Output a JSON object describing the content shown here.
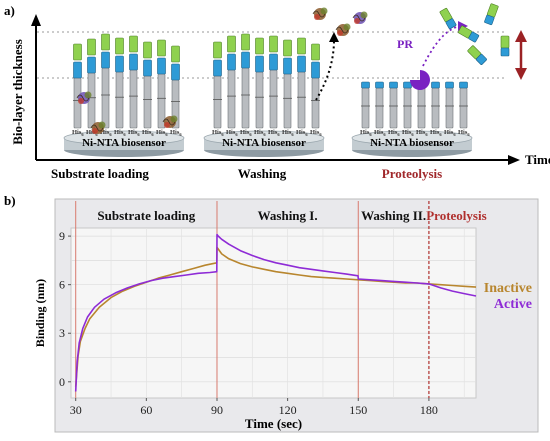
{
  "panel_a": {
    "label": "a)",
    "y_axis_label": "Bio-layer thickness",
    "x_axis_label": "Time",
    "stages": [
      {
        "caption": "Substrate loading",
        "base_label": "Ni-NTA biosensor"
      },
      {
        "caption": "Washing",
        "base_label": "Ni-NTA biosensor"
      },
      {
        "caption": "Proteolysis",
        "base_label": "Ni-NTA biosensor"
      }
    ],
    "his_tag": "His",
    "his_sub": "6",
    "pr_label": "PR",
    "colors": {
      "domain_green": "#8fd14f",
      "domain_blue": "#2e9bd6",
      "domain_grey": "#b9bcc0",
      "substrate_brown": "#8b5a2b",
      "enzyme_purple": "#7a22c2",
      "proteolysis_caption": "#a0282b",
      "arrow_red": "#9b2225"
    }
  },
  "panel_b": {
    "label": "b)",
    "phases": [
      "Substrate loading",
      "Washing I.",
      "Washing II.",
      "Proteolysis"
    ],
    "colors": {
      "inactive": "#b8862e",
      "active": "#8e2bd6",
      "proteolysis_label": "#b0302e",
      "phase_line": "#d87a6e"
    }
  },
  "chart_data": {
    "type": "line",
    "xlabel": "Time (sec)",
    "ylabel": "Binding (nm)",
    "xlim": [
      28,
      200
    ],
    "ylim": [
      -1,
      9.5
    ],
    "xticks": [
      30,
      60,
      90,
      120,
      150,
      180
    ],
    "yticks": [
      0,
      3,
      6,
      9
    ],
    "phase_boundaries": [
      30,
      90,
      150,
      180
    ],
    "series": [
      {
        "name": "Inactive",
        "color": "#b8862e",
        "x": [
          30,
          31,
          32,
          34,
          36,
          40,
          45,
          50,
          55,
          60,
          65,
          70,
          75,
          80,
          85,
          89.9,
          90,
          90.5,
          92,
          95,
          100,
          105,
          110,
          115,
          120,
          125,
          130,
          135,
          140,
          145,
          150,
          155,
          160,
          165,
          170,
          175,
          180,
          185,
          190,
          195,
          200
        ],
        "y": [
          -0.3,
          1.6,
          2.5,
          3.3,
          3.9,
          4.6,
          5.2,
          5.6,
          5.9,
          6.15,
          6.4,
          6.6,
          6.8,
          7.0,
          7.2,
          7.35,
          8.3,
          8.2,
          7.9,
          7.6,
          7.3,
          7.1,
          6.95,
          6.8,
          6.7,
          6.6,
          6.5,
          6.45,
          6.4,
          6.35,
          6.3,
          6.25,
          6.2,
          6.15,
          6.1,
          6.1,
          6.05,
          6.0,
          5.95,
          5.9,
          5.85
        ]
      },
      {
        "name": "Active",
        "color": "#8e2bd6",
        "x": [
          30,
          30.6,
          31.5,
          33,
          35,
          38,
          42,
          47,
          52,
          57,
          62,
          67,
          72,
          77,
          82,
          87,
          89.9,
          90,
          90.5,
          92,
          95,
          100,
          105,
          110,
          115,
          120,
          125,
          130,
          135,
          140,
          145,
          149.9,
          150,
          155,
          160,
          165,
          170,
          175,
          180,
          185,
          190,
          195,
          200
        ],
        "y": [
          -0.6,
          1.2,
          2.4,
          3.3,
          4.0,
          4.6,
          5.1,
          5.5,
          5.8,
          6.05,
          6.25,
          6.4,
          6.5,
          6.6,
          6.7,
          6.75,
          6.8,
          9.1,
          9.0,
          8.8,
          8.5,
          8.1,
          7.8,
          7.55,
          7.35,
          7.2,
          7.05,
          6.95,
          6.85,
          6.75,
          6.65,
          6.55,
          6.35,
          6.3,
          6.25,
          6.2,
          6.15,
          6.1,
          6.05,
          5.8,
          5.6,
          5.45,
          5.3
        ]
      }
    ]
  }
}
